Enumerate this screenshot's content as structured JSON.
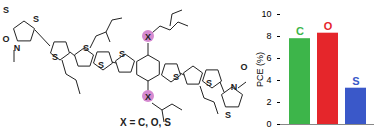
{
  "chart_data": {
    "type": "bar",
    "categories": [
      "C",
      "O",
      "S"
    ],
    "values": [
      7.8,
      8.3,
      3.3
    ],
    "colors": [
      "#3db54a",
      "#e5262b",
      "#3a58c9"
    ],
    "ylabel": "PCE (%)",
    "ylim": [
      0,
      10
    ],
    "yticks": [
      0,
      2,
      4,
      6,
      8,
      10
    ],
    "tick_labels": "y"
  },
  "structure": {
    "caption": "X = C, O, S",
    "atoms": [
      "S",
      "S",
      "O",
      "N",
      "S",
      "S",
      "S",
      "X",
      "X",
      "S",
      "S",
      "S",
      "N",
      "O",
      "S"
    ]
  }
}
